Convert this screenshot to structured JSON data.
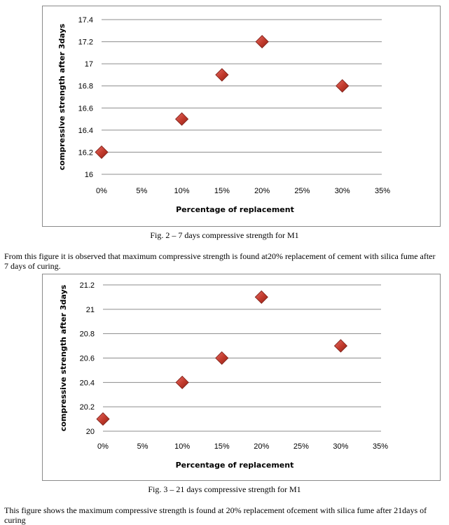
{
  "chart_data": [
    {
      "type": "scatter",
      "x_categories": [
        "0%",
        "5%",
        "10%",
        "15%",
        "20%",
        "25%",
        "30%",
        "35%"
      ],
      "points": [
        {
          "x": "0%",
          "y": 16.2
        },
        {
          "x": "10%",
          "y": 16.5
        },
        {
          "x": "15%",
          "y": 16.9
        },
        {
          "x": "20%",
          "y": 17.2
        },
        {
          "x": "30%",
          "y": 16.8
        }
      ],
      "y_ticks": [
        "16",
        "16.2",
        "16.4",
        "16.6",
        "16.8",
        "17",
        "17.2",
        "17.4"
      ],
      "ylim": [
        16,
        17.4
      ],
      "xlabel": "Percentage of replacement",
      "ylabel": "compressive strength after 3days",
      "grid": "horizontal",
      "marker_color": "#c0392b"
    },
    {
      "type": "scatter",
      "x_categories": [
        "0%",
        "5%",
        "10%",
        "15%",
        "20%",
        "25%",
        "30%",
        "35%"
      ],
      "points": [
        {
          "x": "0%",
          "y": 20.1
        },
        {
          "x": "10%",
          "y": 20.4
        },
        {
          "x": "15%",
          "y": 20.6
        },
        {
          "x": "20%",
          "y": 21.1
        },
        {
          "x": "30%",
          "y": 20.7
        }
      ],
      "y_ticks": [
        "20",
        "20.2",
        "20.4",
        "20.6",
        "20.8",
        "21",
        "21.2"
      ],
      "ylim": [
        20,
        21.2
      ],
      "xlabel": "Percentage of replacement",
      "ylabel": "compressive strength after 3days",
      "grid": "horizontal",
      "marker_color": "#c0392b"
    }
  ],
  "captions": {
    "fig2": "Fig. 2 – 7 days compressive strength for M1",
    "fig3": "Fig. 3 – 21 days compressive strength for M1"
  },
  "paragraphs": {
    "p1": "From this figure it is observed that maximum compressive strength is found at20% replacement of cement with silica fume after 7 days of curing.",
    "p2": "This figure shows the maximum compressive strength is found at 20% replacement ofcement with silica fume after 21days of curing"
  }
}
